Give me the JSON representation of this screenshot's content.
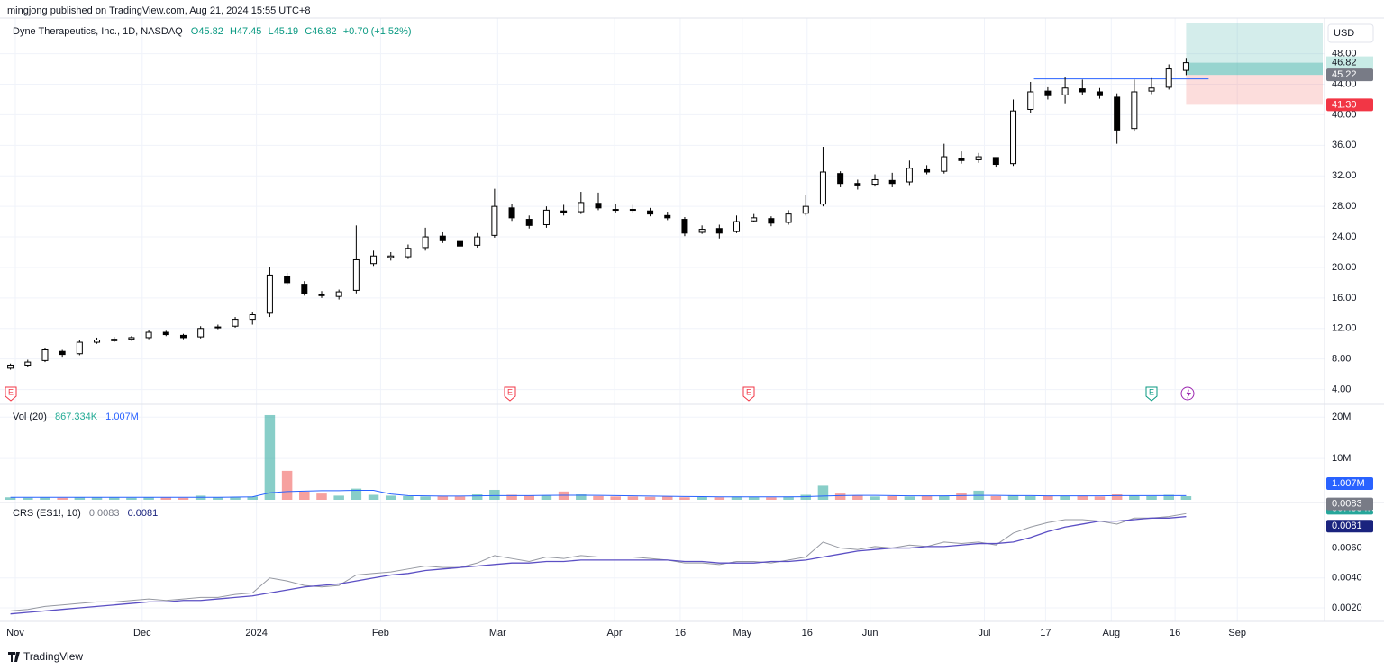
{
  "header": {
    "published": "mingjong published on TradingView.com, Aug 21, 2024 15:55 UTC+8",
    "currency": "USD"
  },
  "footer": {
    "logo": "TradingView"
  },
  "earnings_marks": [
    "E",
    "E",
    "E",
    "E"
  ],
  "chart_data": [
    {
      "type": "candlestick",
      "title": "Dyne Therapeutics, Inc., 1D, NASDAQ",
      "ohlc_labels": [
        "O45.82",
        "H47.45",
        "L45.19",
        "C46.82"
      ],
      "change_label": "+0.70 (+1.52%)",
      "up_color": "#ffffff",
      "down_color": "#000000",
      "open": [
        6.8,
        7.2,
        7.8,
        9.0,
        8.7,
        10.2,
        10.4,
        10.6,
        10.8,
        11.5,
        11.1,
        10.9,
        12.1,
        12.3,
        13.2,
        14.0,
        18.8,
        17.8,
        16.5,
        16.2,
        17.0,
        20.5,
        21.3,
        21.4,
        22.6,
        24.1,
        23.4,
        22.9,
        24.2,
        27.8,
        26.3,
        25.6,
        27.4,
        27.3,
        28.4,
        27.6,
        27.6,
        27.4,
        26.8,
        26.3,
        24.6,
        25.1,
        24.7,
        26.1,
        26.4,
        25.9,
        27.1,
        28.3,
        32.3,
        31.0,
        30.9,
        31.4,
        31.2,
        32.8,
        32.6,
        34.3,
        34.1,
        34.4,
        33.6,
        40.7,
        43.1,
        42.6,
        43.4,
        43.0,
        42.3,
        38.2,
        43.1,
        43.6,
        45.82
      ],
      "high": [
        7.4,
        7.9,
        9.5,
        9.2,
        10.5,
        10.8,
        10.9,
        11.0,
        11.8,
        11.7,
        11.3,
        12.3,
        12.5,
        13.5,
        14.2,
        20.0,
        19.3,
        18.2,
        16.9,
        17.1,
        25.5,
        22.2,
        22.0,
        23.0,
        25.2,
        24.6,
        23.8,
        24.5,
        30.3,
        28.3,
        26.8,
        28.0,
        28.2,
        29.9,
        29.8,
        28.3,
        28.2,
        27.8,
        27.3,
        26.6,
        25.5,
        25.6,
        26.8,
        27.0,
        26.7,
        27.5,
        29.5,
        35.8,
        32.6,
        31.5,
        32.2,
        32.4,
        34.0,
        33.4,
        36.2,
        35.2,
        35.0,
        34.2,
        42.0,
        44.3,
        43.6,
        45.0,
        44.6,
        43.5,
        42.8,
        44.6,
        44.8,
        46.6,
        47.45
      ],
      "low": [
        6.6,
        7.0,
        7.6,
        8.3,
        8.5,
        10.0,
        10.2,
        10.4,
        10.6,
        11.0,
        10.6,
        10.7,
        11.9,
        12.1,
        12.5,
        13.5,
        17.7,
        16.3,
        16.0,
        15.8,
        16.6,
        20.2,
        20.9,
        21.1,
        22.2,
        23.2,
        22.4,
        22.6,
        23.9,
        26.1,
        25.1,
        25.2,
        26.8,
        27.0,
        27.5,
        27.2,
        27.1,
        26.7,
        26.2,
        24.1,
        24.4,
        23.8,
        24.5,
        25.9,
        25.4,
        25.6,
        26.8,
        28.0,
        30.5,
        30.2,
        30.6,
        30.5,
        30.8,
        32.2,
        32.3,
        33.6,
        33.7,
        33.2,
        33.3,
        40.2,
        42.0,
        41.5,
        42.6,
        42.1,
        36.2,
        37.8,
        42.7,
        43.3,
        45.19
      ],
      "close": [
        7.2,
        7.6,
        9.2,
        8.6,
        10.2,
        10.5,
        10.6,
        10.8,
        11.5,
        11.2,
        10.8,
        12.0,
        12.2,
        13.2,
        13.8,
        19.0,
        18.0,
        16.6,
        16.3,
        16.8,
        21.0,
        21.5,
        21.5,
        22.5,
        24.0,
        23.5,
        22.8,
        24.0,
        28.0,
        26.5,
        25.5,
        27.5,
        27.2,
        28.5,
        27.8,
        27.5,
        27.5,
        27.0,
        26.5,
        24.5,
        25.0,
        24.5,
        26.0,
        26.5,
        25.8,
        27.0,
        28.0,
        32.5,
        31.0,
        30.8,
        31.5,
        31.0,
        33.0,
        32.5,
        34.5,
        34.0,
        34.5,
        33.5,
        40.5,
        43.0,
        42.5,
        43.5,
        43.0,
        42.5,
        38.0,
        43.0,
        43.5,
        46.0,
        46.82
      ],
      "xlim": [
        -0.5,
        75.9
      ],
      "xticks": [
        {
          "value": 0.28,
          "label": "Nov"
        },
        {
          "value": 7.62,
          "label": "Dec"
        },
        {
          "value": 14.23,
          "label": "2024"
        },
        {
          "value": 21.41,
          "label": "Feb"
        },
        {
          "value": 28.18,
          "label": "Mar"
        },
        {
          "value": 34.94,
          "label": "Apr"
        },
        {
          "value": 38.74,
          "label": "16"
        },
        {
          "value": 42.33,
          "label": "May"
        },
        {
          "value": 46.08,
          "label": "16"
        },
        {
          "value": 49.72,
          "label": "Jun"
        },
        {
          "value": 56.33,
          "label": "Jul"
        },
        {
          "value": 59.87,
          "label": "17"
        },
        {
          "value": 63.67,
          "label": "Aug"
        },
        {
          "value": 67.36,
          "label": "16"
        },
        {
          "value": 70.96,
          "label": "Sep"
        }
      ],
      "ylim": [
        2.3,
        52.2
      ],
      "yticks": [
        {
          "value": 4,
          "label": "4.00"
        },
        {
          "value": 8,
          "label": "8.00"
        },
        {
          "value": 12,
          "label": "12.00"
        },
        {
          "value": 16,
          "label": "16.00"
        },
        {
          "value": 20,
          "label": "20.00"
        },
        {
          "value": 24,
          "label": "24.00"
        },
        {
          "value": 28,
          "label": "28.00"
        },
        {
          "value": 32,
          "label": "32.00"
        },
        {
          "value": 36,
          "label": "36.00"
        },
        {
          "value": 40,
          "label": "40.00"
        },
        {
          "value": 44,
          "label": "44.00"
        },
        {
          "value": 48,
          "label": "48.00"
        }
      ],
      "grid": true,
      "position": {
        "target": 52.0,
        "entry": 45.22,
        "stop": {
          "value": 41.3,
          "label": "41.30"
        }
      },
      "level": {
        "value": 44.7,
        "x": [
          59.2,
          69.3
        ],
        "color": "#2962ff"
      }
    },
    {
      "type": "bar",
      "title": "Vol (20)",
      "legend_labels": [
        "867.334K",
        "1.007M"
      ],
      "up_color": "#26a69a",
      "down_color": "#ef5350",
      "ma_color": "#2962ff",
      "values": [
        600000,
        500000,
        650000,
        500000,
        600000,
        550000,
        600000,
        500000,
        600000,
        550000,
        500000,
        1000000,
        600000,
        700000,
        800000,
        20500000,
        7000000,
        2000000,
        1500000,
        1000000,
        2700000,
        1200000,
        1000000,
        900000,
        800000,
        900000,
        800000,
        1300000,
        2400000,
        1200000,
        1000000,
        1100000,
        2000000,
        1300000,
        900000,
        800000,
        800000,
        700000,
        800000,
        600000,
        700000,
        600000,
        800000,
        700000,
        600000,
        800000,
        1200000,
        3400000,
        1500000,
        1000000,
        800000,
        900000,
        800000,
        900000,
        1000000,
        1600000,
        2200000,
        900000,
        1100000,
        900000,
        1000000,
        900000,
        1000000,
        800000,
        1300000,
        1000000,
        900000,
        1200000,
        867334
      ],
      "ma": [
        600000,
        600000,
        600000,
        600000,
        600000,
        600000,
        600000,
        600000,
        600000,
        600000,
        600000,
        600000,
        600000,
        650000,
        700000,
        1700000,
        2000000,
        2100000,
        2200000,
        2200000,
        2300000,
        2300000,
        1400000,
        1000000,
        950000,
        900000,
        900000,
        950000,
        1000000,
        1000000,
        1000000,
        1050000,
        1100000,
        1100000,
        1050000,
        1000000,
        950000,
        900000,
        850000,
        800000,
        750000,
        720000,
        700000,
        700000,
        700000,
        720000,
        750000,
        900000,
        1000000,
        1050000,
        1050000,
        1000000,
        950000,
        950000,
        950000,
        1000000,
        1050000,
        1050000,
        1000000,
        1000000,
        950000,
        950000,
        950000,
        950000,
        1000000,
        1000000,
        1000000,
        1000000,
        1007000
      ],
      "ylim": [
        0,
        21800000
      ],
      "yticks": [
        {
          "value": 10000000,
          "label": "10M"
        },
        {
          "value": 20000000,
          "label": "20M"
        }
      ]
    },
    {
      "type": "line",
      "title": "CRS (ES1!, 10)",
      "series": [
        {
          "color": "#9598a1",
          "values": [
            0.0018,
            0.0019,
            0.0021,
            0.0022,
            0.0023,
            0.0024,
            0.0024,
            0.0025,
            0.0026,
            0.0025,
            0.0026,
            0.0027,
            0.0027,
            0.0029,
            0.003,
            0.004,
            0.0038,
            0.0035,
            0.0034,
            0.0035,
            0.0042,
            0.0043,
            0.0044,
            0.0046,
            0.0048,
            0.0047,
            0.0047,
            0.005,
            0.0055,
            0.0053,
            0.0051,
            0.0054,
            0.0053,
            0.0055,
            0.0054,
            0.0054,
            0.0054,
            0.0053,
            0.0052,
            0.005,
            0.005,
            0.0049,
            0.0051,
            0.0051,
            0.005,
            0.0052,
            0.0054,
            0.0064,
            0.006,
            0.0059,
            0.0061,
            0.006,
            0.0062,
            0.0061,
            0.0064,
            0.0063,
            0.0064,
            0.0062,
            0.007,
            0.0074,
            0.0077,
            0.0079,
            0.0079,
            0.0078,
            0.0076,
            0.008,
            0.008,
            0.0081,
            0.0083
          ]
        },
        {
          "color": "#5b4fc4",
          "values": [
            0.0016,
            0.0017,
            0.0018,
            0.0019,
            0.002,
            0.0021,
            0.0022,
            0.0023,
            0.0024,
            0.0024,
            0.0025,
            0.0025,
            0.0026,
            0.0027,
            0.0028,
            0.003,
            0.0032,
            0.0034,
            0.0035,
            0.0036,
            0.0038,
            0.004,
            0.0042,
            0.0043,
            0.0045,
            0.0046,
            0.0047,
            0.0048,
            0.0049,
            0.005,
            0.005,
            0.0051,
            0.0051,
            0.0052,
            0.0052,
            0.0052,
            0.0052,
            0.0052,
            0.0052,
            0.0051,
            0.0051,
            0.005,
            0.005,
            0.005,
            0.0051,
            0.0051,
            0.0052,
            0.0054,
            0.0056,
            0.0058,
            0.0059,
            0.006,
            0.006,
            0.0061,
            0.0061,
            0.0062,
            0.0063,
            0.0063,
            0.0064,
            0.0067,
            0.0071,
            0.0074,
            0.0076,
            0.0078,
            0.0078,
            0.0079,
            0.008,
            0.008,
            0.0081
          ]
        }
      ],
      "ylim": [
        0.0011,
        0.0088
      ],
      "yticks": [
        {
          "value": 0.002,
          "label": "0.0020"
        },
        {
          "value": 0.004,
          "label": "0.0040"
        },
        {
          "value": 0.006,
          "label": "0.0060"
        }
      ]
    }
  ]
}
